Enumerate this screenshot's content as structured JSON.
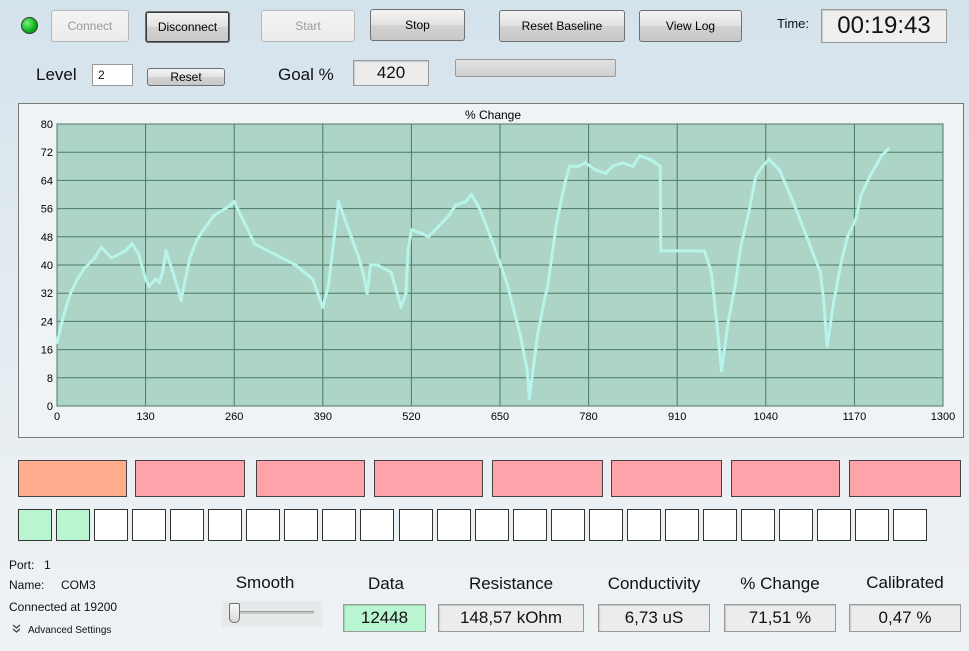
{
  "status_led_color": "#10b420",
  "toolbar": {
    "connect": "Connect",
    "disconnect": "Disconnect",
    "start": "Start",
    "stop": "Stop",
    "reset_baseline": "Reset Baseline",
    "view_log": "View Log",
    "time_label": "Time:",
    "time_value": "00:19:43"
  },
  "level": {
    "label": "Level",
    "value": "2",
    "reset": "Reset"
  },
  "goal": {
    "label": "Goal %",
    "value": "420",
    "progress": 0
  },
  "chart_data": {
    "type": "scatter",
    "title": "% Change",
    "xlabel": "",
    "ylabel": "",
    "xlim": [
      0,
      1300
    ],
    "ylim": [
      0,
      80
    ],
    "xticks": [
      0,
      130,
      260,
      390,
      520,
      650,
      780,
      910,
      1040,
      1170,
      1300
    ],
    "yticks": [
      0,
      8,
      16,
      24,
      32,
      40,
      48,
      56,
      64,
      72,
      80
    ],
    "grid": true,
    "background": "#acd4c7",
    "series_color": "#b8f4ea",
    "x": [
      0,
      5,
      10,
      20,
      30,
      40,
      55,
      65,
      80,
      100,
      110,
      120,
      130,
      135,
      145,
      150,
      155,
      160,
      170,
      178,
      182,
      195,
      205,
      215,
      230,
      255,
      260,
      275,
      290,
      310,
      330,
      350,
      375,
      390,
      398,
      408,
      413,
      428,
      443,
      450,
      455,
      460,
      470,
      490,
      505,
      512,
      515,
      520,
      535,
      545,
      560,
      575,
      585,
      600,
      608,
      620,
      640,
      660,
      680,
      690,
      693,
      705,
      715,
      720,
      733,
      745,
      752,
      765,
      775,
      790,
      805,
      815,
      830,
      845,
      855,
      870,
      878,
      885,
      886,
      930,
      950,
      960,
      968,
      975,
      985,
      995,
      1003,
      1015,
      1025,
      1035,
      1045,
      1060,
      1080,
      1100,
      1120,
      1125,
      1130,
      1140,
      1152,
      1160,
      1172,
      1180,
      1195,
      1210,
      1220
    ],
    "y": [
      18,
      22,
      26,
      32,
      36,
      39,
      42,
      45,
      42,
      44,
      46,
      43,
      36,
      34,
      36,
      35,
      38,
      44,
      38,
      33,
      30,
      42,
      47,
      50,
      54,
      57,
      58,
      52,
      46,
      44,
      42,
      40,
      36,
      28,
      34,
      50,
      58,
      50,
      42,
      37,
      32,
      40,
      40,
      38,
      28,
      32,
      44,
      50,
      49,
      48,
      51,
      54,
      57,
      58,
      60,
      56,
      46,
      35,
      20,
      10,
      2,
      20,
      30,
      34,
      52,
      63,
      68,
      68,
      69,
      67,
      66,
      68,
      69,
      68,
      71,
      70,
      69,
      68,
      44,
      44,
      44,
      38,
      24,
      10,
      24,
      34,
      45,
      55,
      65,
      68,
      70,
      67,
      58,
      48,
      38,
      30,
      17,
      30,
      42,
      48,
      53,
      60,
      66,
      71,
      73
    ]
  },
  "indicators": [
    {
      "color": "#ffad8c"
    },
    {
      "color": "#ffa3ab"
    },
    {
      "color": "#ffa3ab"
    },
    {
      "color": "#ffa3ab"
    },
    {
      "color": "#ffa3ab"
    },
    {
      "color": "#ffa3ab"
    },
    {
      "color": "#ffa3ab"
    },
    {
      "color": "#ffa3ab"
    }
  ],
  "level_squares": {
    "count": 24,
    "filled": 2,
    "fill_color": "#b9f5d0"
  },
  "info": {
    "port_label": "Port:",
    "port_value": "1",
    "name_label": "Name:",
    "name_value": "COM3",
    "connected": "Connected at 19200",
    "advanced": "Advanced Settings"
  },
  "smooth": {
    "label": "Smooth",
    "value": 0
  },
  "metrics": {
    "data": {
      "label": "Data",
      "value": "12448",
      "highlight": "#b9f5d0"
    },
    "resistance": {
      "label": "Resistance",
      "value": "148,57 kOhm"
    },
    "conductivity": {
      "label": "Conductivity",
      "value": "6,73 uS"
    },
    "pct_change": {
      "label": "% Change",
      "value": "71,51 %"
    },
    "calibrated": {
      "label": "Calibrated",
      "value": "0,47 %"
    }
  }
}
